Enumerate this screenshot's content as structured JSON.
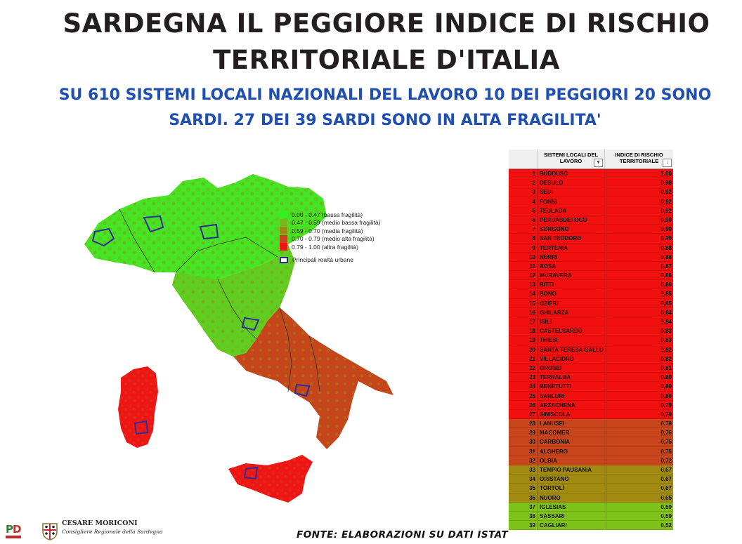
{
  "header": {
    "title_line1": "SARDEGNA IL PEGGIORE INDICE DI RISCHIO",
    "title_line2": "TERRITORIALE D'ITALIA",
    "subtitle_line1": "SU 610 SISTEMI LOCALI NAZIONALI DEL LAVORO 10 DEI PEGGIORI 20 SONO",
    "subtitle_line2": "SARDI. 27 DEI 39 SARDI SONO IN ALTA FRAGILITA'"
  },
  "legend": {
    "classes": [
      {
        "label": "0.00 - 0.47 (bassa fragilità)",
        "color": "#33ee22"
      },
      {
        "label": "0.47 - 0.59 (medio bassa fragilità)",
        "color": "#77b91a"
      },
      {
        "label": "0.59 - 0.70 (media fragilità)",
        "color": "#9a8a12"
      },
      {
        "label": "0.70 - 0.79 (medio alta fragilità)",
        "color": "#c4461a"
      },
      {
        "label": "0.79 - 1.00 (altra fragilità)",
        "color": "#f01414"
      }
    ],
    "urban_label": "Principali realtà urbane",
    "urban_color": "#2e2e9a"
  },
  "table": {
    "col_name_header": "SISTEMI LOCALI DEL LAVORO",
    "col_value_header": "INDICE DI RISCHIO TERRITORIALE",
    "filter_icon": "filter-sort-icon",
    "rows": [
      {
        "rank": "1",
        "name": "BUDDUSÒ",
        "value": "1,00"
      },
      {
        "rank": "2",
        "name": "DESULO",
        "value": "0,98"
      },
      {
        "rank": "3",
        "name": "SEUI",
        "value": "0,92"
      },
      {
        "rank": "4",
        "name": "FONNI",
        "value": "0,92"
      },
      {
        "rank": "5",
        "name": "TEULADA",
        "value": "0,92"
      },
      {
        "rank": "6",
        "name": "PERDASDEFOGU",
        "value": "0,90"
      },
      {
        "rank": "7",
        "name": "SORGONO",
        "value": "0,90"
      },
      {
        "rank": "8",
        "name": "SAN TEODORO",
        "value": "0,90"
      },
      {
        "rank": "9",
        "name": "TERTENIA",
        "value": "0,88"
      },
      {
        "rank": "10",
        "name": "NURRI",
        "value": "0,88"
      },
      {
        "rank": "11",
        "name": "BOSA",
        "value": "0,87"
      },
      {
        "rank": "12",
        "name": "MURAVERA",
        "value": "0,86"
      },
      {
        "rank": "13",
        "name": "BITTI",
        "value": "0,86"
      },
      {
        "rank": "14",
        "name": "BONO",
        "value": "0,85"
      },
      {
        "rank": "15",
        "name": "OZIERI",
        "value": "0,85"
      },
      {
        "rank": "16",
        "name": "GHILARZA",
        "value": "0,84"
      },
      {
        "rank": "17",
        "name": "ISILI",
        "value": "0,84"
      },
      {
        "rank": "18",
        "name": "CASTELSARDO",
        "value": "0,83"
      },
      {
        "rank": "19",
        "name": "THIESI",
        "value": "0,83"
      },
      {
        "rank": "20",
        "name": "SANTA TERESA GALLU",
        "value": "0,82"
      },
      {
        "rank": "21",
        "name": "VILLACIDRO",
        "value": "0,82"
      },
      {
        "rank": "22",
        "name": "OROSEI",
        "value": "0,81"
      },
      {
        "rank": "23",
        "name": "TERRALBA",
        "value": "0,80"
      },
      {
        "rank": "24",
        "name": "BENETUTTI",
        "value": "0,80"
      },
      {
        "rank": "25",
        "name": "SANLURI",
        "value": "0,80"
      },
      {
        "rank": "26",
        "name": "ARZACHENA",
        "value": "0,79"
      },
      {
        "rank": "27",
        "name": "SINISCOLA",
        "value": "0,79"
      },
      {
        "rank": "28",
        "name": "LANUSEI",
        "value": "0,78"
      },
      {
        "rank": "29",
        "name": "MACOMER",
        "value": "0,76"
      },
      {
        "rank": "30",
        "name": "CARBONIA",
        "value": "0,75"
      },
      {
        "rank": "31",
        "name": "ALGHERO",
        "value": "0,75"
      },
      {
        "rank": "32",
        "name": "OLBIA",
        "value": "0,72"
      },
      {
        "rank": "33",
        "name": "TEMPIO PAUSANIA",
        "value": "0,67"
      },
      {
        "rank": "34",
        "name": "ORISTANO",
        "value": "0,67"
      },
      {
        "rank": "35",
        "name": "TORTOLÌ",
        "value": "0,67"
      },
      {
        "rank": "36",
        "name": "NUORO",
        "value": "0,65"
      },
      {
        "rank": "37",
        "name": "IGLESIAS",
        "value": "0,59"
      },
      {
        "rank": "38",
        "name": "SASSARI",
        "value": "0,59"
      },
      {
        "rank": "39",
        "name": "CAGLIARI",
        "value": "0,52"
      }
    ]
  },
  "footer": {
    "author_name": "CESARE MORICONI",
    "author_role": "Consigliere Regionale della Sardegna",
    "source": "FONTE: ELABORAZIONI SU DATI ISTAT",
    "logo_left": "pd-party-logo",
    "logo_right": "sardinia-crest-logo"
  }
}
